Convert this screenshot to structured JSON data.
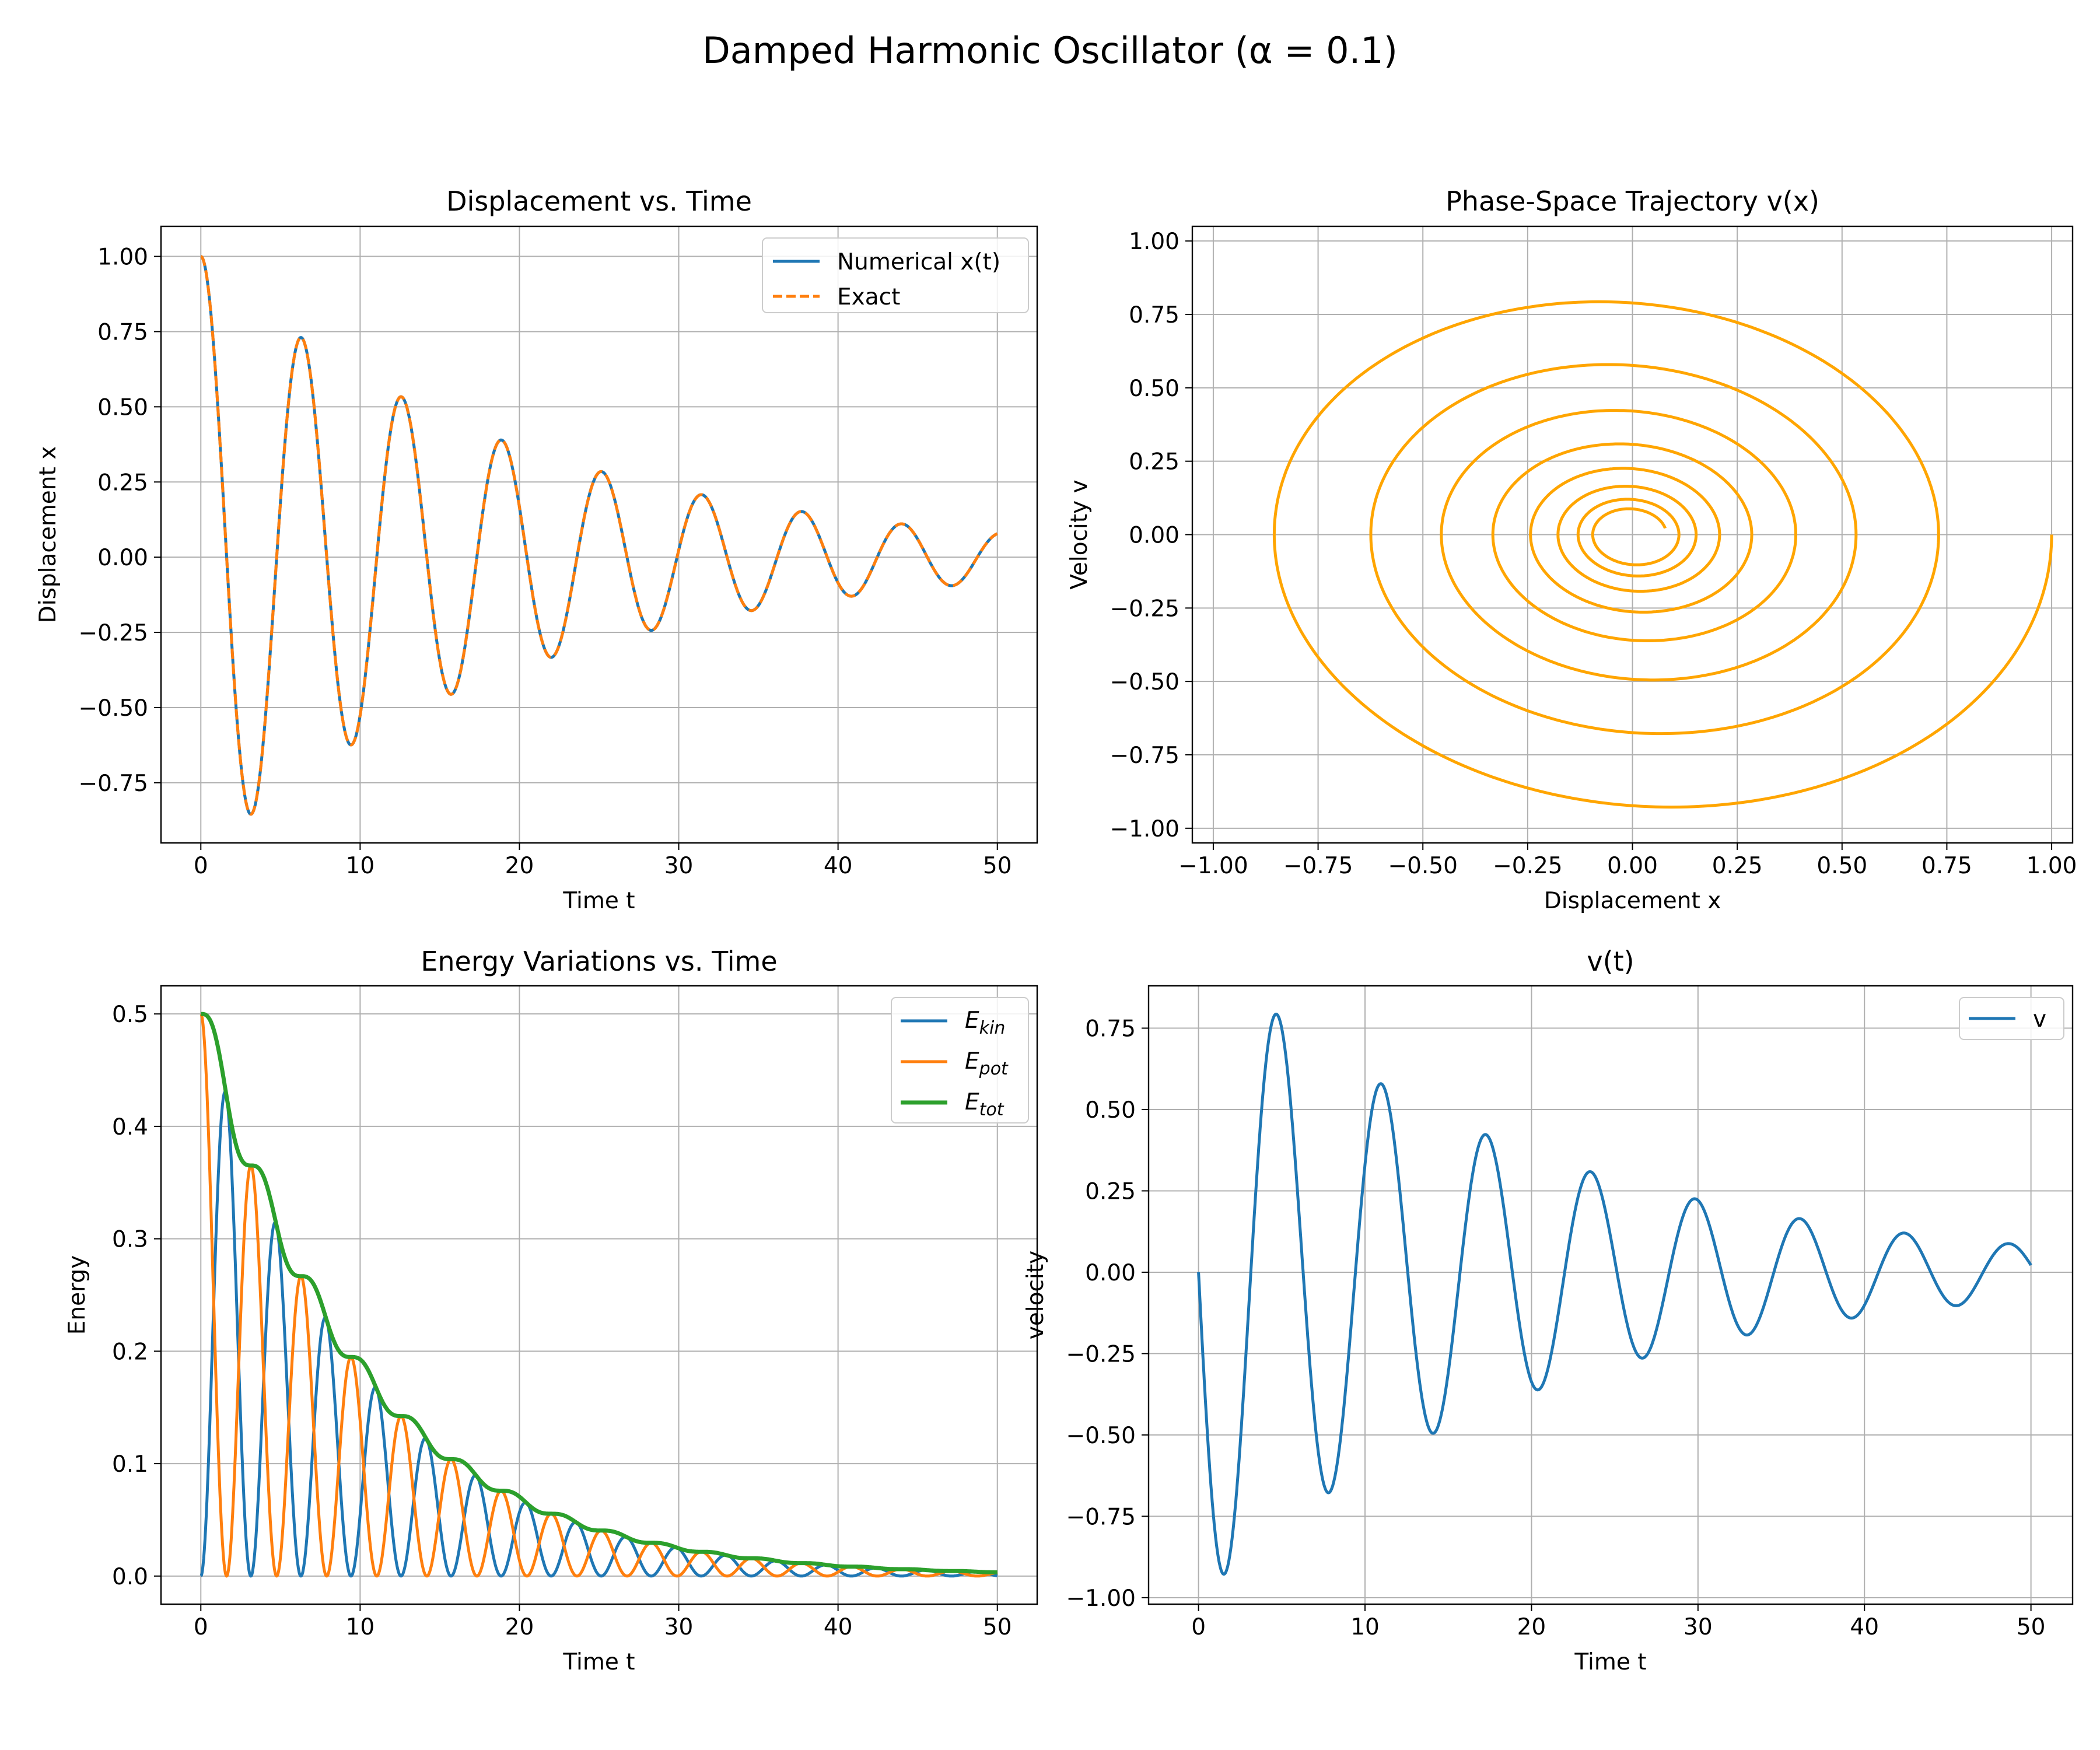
{
  "figure": {
    "title": "Damped Harmonic Oscillator (α = 0.1)"
  },
  "chart_data": [
    {
      "id": "displacement",
      "type": "line",
      "title": "Displacement vs. Time",
      "xlabel": "Time t",
      "ylabel": "Displacement x",
      "xlim": [
        -2.5,
        52.5
      ],
      "ylim": [
        -0.95,
        1.1
      ],
      "xticks": [
        0,
        10,
        20,
        30,
        40,
        50
      ],
      "yticks": [
        -0.75,
        -0.5,
        -0.25,
        0.0,
        0.25,
        0.5,
        0.75,
        1.0
      ],
      "grid": true,
      "legend": "upper right",
      "x_range": [
        0,
        50
      ],
      "series": [
        {
          "name": "Numerical x(t)",
          "label": "Numerical x(t)",
          "color": "#1f77b4",
          "style": "solid",
          "formula": "x(t) = e^(-0.05 t) cos(t) + 0.05 e^(-0.05 t) sin(t)"
        },
        {
          "name": "Exact",
          "label": "Exact",
          "color": "#ff7f0e",
          "style": "dashed",
          "formula": "x(t) = e^(-0.05 t) cos(t) + 0.05 e^(-0.05 t) sin(t)"
        }
      ],
      "extrema": {
        "x": [
          0.0,
          3.14,
          6.28,
          9.42,
          12.57,
          15.71,
          18.85,
          21.99,
          25.13,
          28.27,
          31.42,
          34.56,
          37.7,
          40.84,
          43.98,
          47.12
        ],
        "y": [
          1.0,
          -0.86,
          0.73,
          -0.63,
          0.53,
          -0.46,
          0.39,
          -0.33,
          0.28,
          -0.24,
          0.21,
          -0.18,
          0.15,
          -0.13,
          0.11,
          -0.09
        ]
      }
    },
    {
      "id": "phase",
      "type": "line",
      "title": "Phase-Space Trajectory v(x)",
      "xlabel": "Displacement x",
      "ylabel": "Velocity v",
      "xlim": [
        -1.05,
        1.05
      ],
      "ylim": [
        -1.05,
        1.05
      ],
      "xticks": [
        -1.0,
        -0.75,
        -0.5,
        -0.25,
        0.0,
        0.25,
        0.5,
        0.75,
        1.0
      ],
      "yticks": [
        -1.0,
        -0.75,
        -0.5,
        -0.25,
        0.0,
        0.25,
        0.5,
        0.75,
        1.0
      ],
      "grid": true,
      "series": [
        {
          "color": "#ffa500",
          "formula": "(x(t), v(t)), t from 0 to 50; v(t) = -1.0025 e^(-0.05 t) sin(t)"
        }
      ]
    },
    {
      "id": "energy",
      "type": "line",
      "title": "Energy Variations vs. Time",
      "xlabel": "Time t",
      "ylabel": "Energy",
      "xlim": [
        -2.5,
        52.5
      ],
      "ylim": [
        -0.025,
        0.525
      ],
      "xticks": [
        0,
        10,
        20,
        30,
        40,
        50
      ],
      "yticks": [
        0.0,
        0.1,
        0.2,
        0.3,
        0.4,
        0.5
      ],
      "grid": true,
      "legend": "upper right",
      "x_range": [
        0,
        50
      ],
      "series": [
        {
          "name": "E_kin",
          "label_main": "E",
          "label_sub": "kin",
          "color": "#1f77b4",
          "formula": "0.5 v(t)^2"
        },
        {
          "name": "E_pot",
          "label_main": "E",
          "label_sub": "pot",
          "color": "#ff7f0e",
          "formula": "0.5 x(t)^2"
        },
        {
          "name": "E_tot",
          "label_main": "E",
          "label_sub": "tot",
          "color": "#2ca02c",
          "formula": "0.5 x(t)^2 + 0.5 v(t)^2"
        }
      ]
    },
    {
      "id": "velocity",
      "type": "line",
      "title": "v(t)",
      "xlabel": "Time t",
      "ylabel": "velocity",
      "xlim": [
        -3.0,
        52.5
      ],
      "ylim": [
        -1.02,
        0.88
      ],
      "xticks": [
        0,
        10,
        20,
        30,
        40,
        50
      ],
      "yticks": [
        -1.0,
        -0.75,
        -0.5,
        -0.25,
        0.0,
        0.25,
        0.5,
        0.75
      ],
      "grid": true,
      "legend": "upper right",
      "x_range": [
        0,
        50
      ],
      "series": [
        {
          "name": "v",
          "label": "v",
          "color": "#1f77b4",
          "formula": "v(t) = -1.0025 e^(-0.05 t) sin(t)"
        }
      ],
      "extrema": {
        "x": [
          0.0,
          1.52,
          4.66,
          7.8,
          10.94,
          14.08,
          17.22,
          20.36,
          23.5,
          26.64,
          29.78,
          32.93,
          36.07,
          39.21,
          42.35,
          45.49,
          48.63
        ],
        "y": [
          0.0,
          -0.93,
          0.79,
          -0.68,
          0.58,
          -0.49,
          0.42,
          -0.36,
          0.31,
          -0.26,
          0.23,
          -0.19,
          0.16,
          -0.14,
          0.12,
          -0.1,
          0.09
        ]
      }
    }
  ]
}
